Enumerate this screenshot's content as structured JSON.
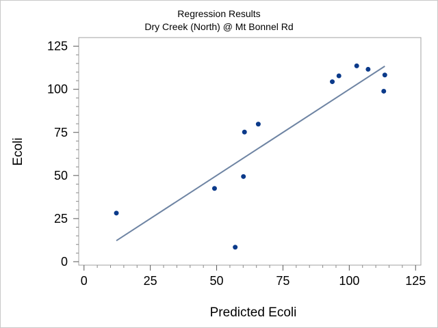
{
  "chart_data": {
    "type": "scatter",
    "title": "Regression Results",
    "subtitle": "Dry Creek (North) @ Mt Bonnel Rd",
    "xlabel": "Predicted Ecoli",
    "ylabel": "Ecoli",
    "xlim": [
      -2,
      127
    ],
    "ylim": [
      -2,
      130
    ],
    "xticks": [
      0,
      25,
      50,
      75,
      100,
      125
    ],
    "yticks": [
      0,
      25,
      50,
      75,
      100,
      125
    ],
    "grid": false,
    "point_color": "#0b3a8a",
    "line_color": "#6e84a3",
    "points": [
      {
        "x": 12.2,
        "y": 28.2
      },
      {
        "x": 49.2,
        "y": 42.5
      },
      {
        "x": 57.0,
        "y": 8.4
      },
      {
        "x": 60.1,
        "y": 49.4
      },
      {
        "x": 60.5,
        "y": 75.2
      },
      {
        "x": 65.7,
        "y": 79.8
      },
      {
        "x": 93.6,
        "y": 104.4
      },
      {
        "x": 96.1,
        "y": 107.8
      },
      {
        "x": 102.8,
        "y": 113.6
      },
      {
        "x": 107.1,
        "y": 111.6
      },
      {
        "x": 113.0,
        "y": 98.9
      },
      {
        "x": 113.4,
        "y": 108.3
      }
    ],
    "fit_line": {
      "x": [
        12.2,
        113.4
      ],
      "y": [
        12.2,
        113.4
      ]
    }
  }
}
